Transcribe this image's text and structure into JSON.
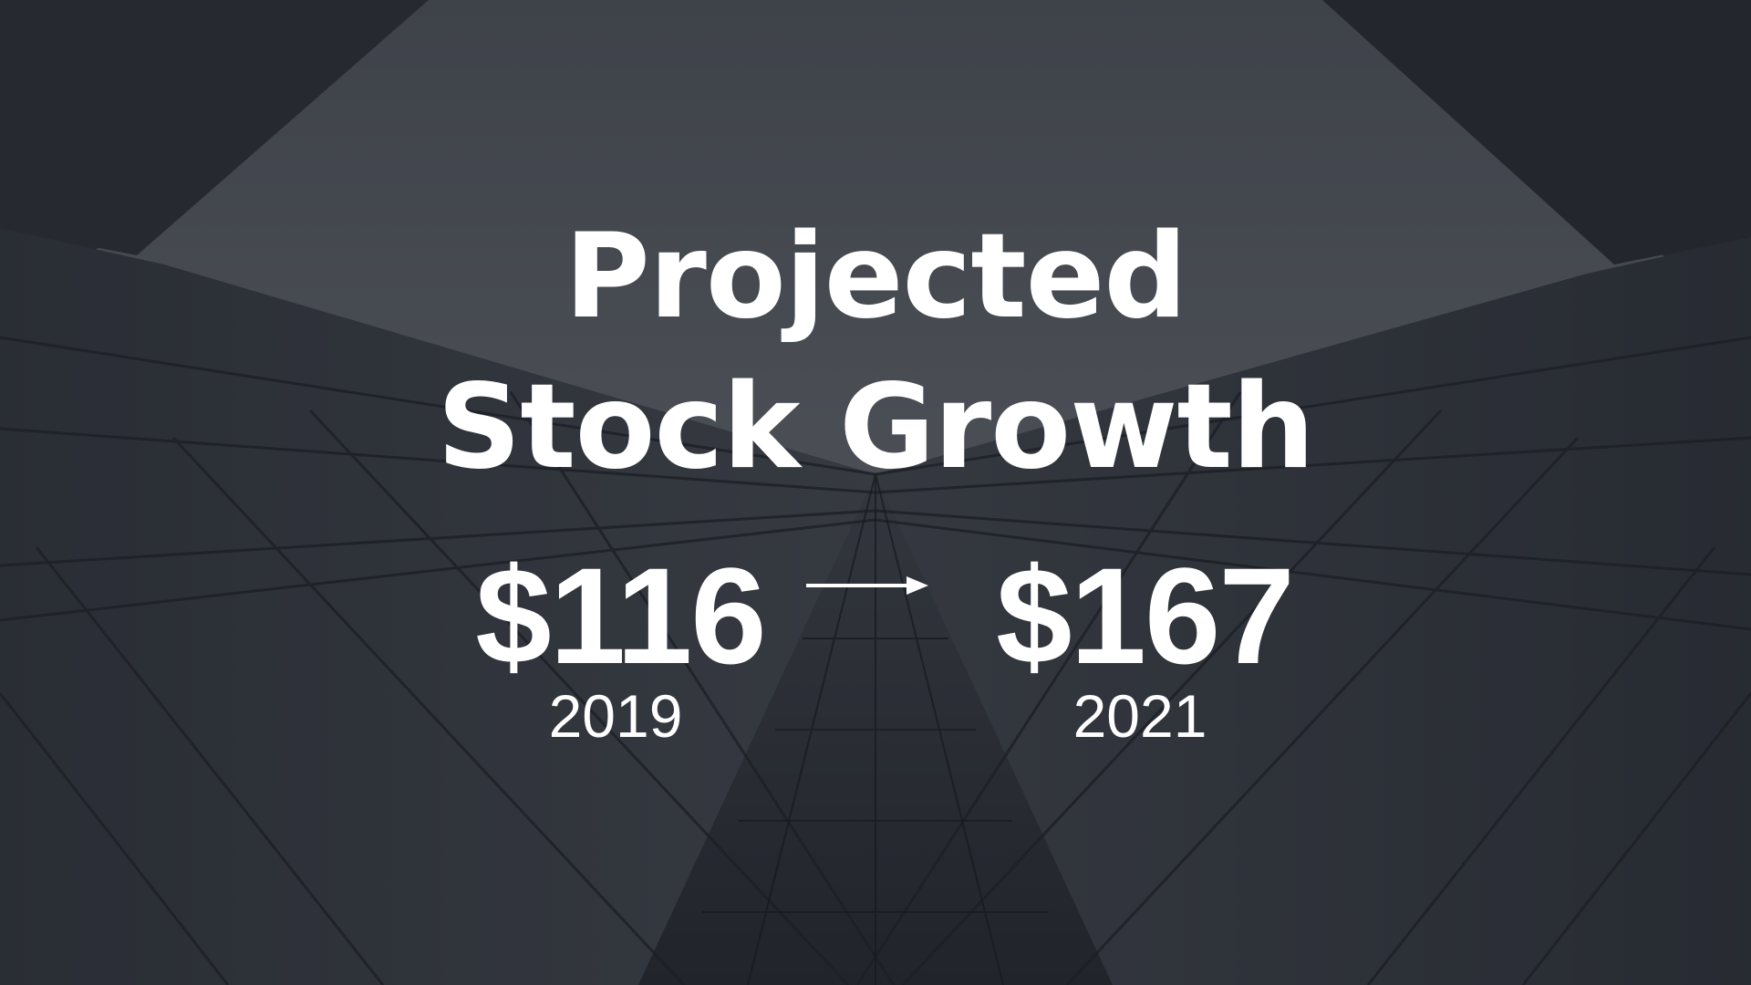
{
  "slide": {
    "title_line_1": "Projected",
    "title_line_2": "Stock Growth",
    "start": {
      "value": "$116",
      "year": "2019"
    },
    "end": {
      "value": "$167",
      "year": "2021"
    },
    "icons": {
      "arrow": "right-arrow-icon",
      "background": "building-facade-photo"
    },
    "colors": {
      "text": "#ffffff",
      "background": "#2b2f35"
    }
  }
}
